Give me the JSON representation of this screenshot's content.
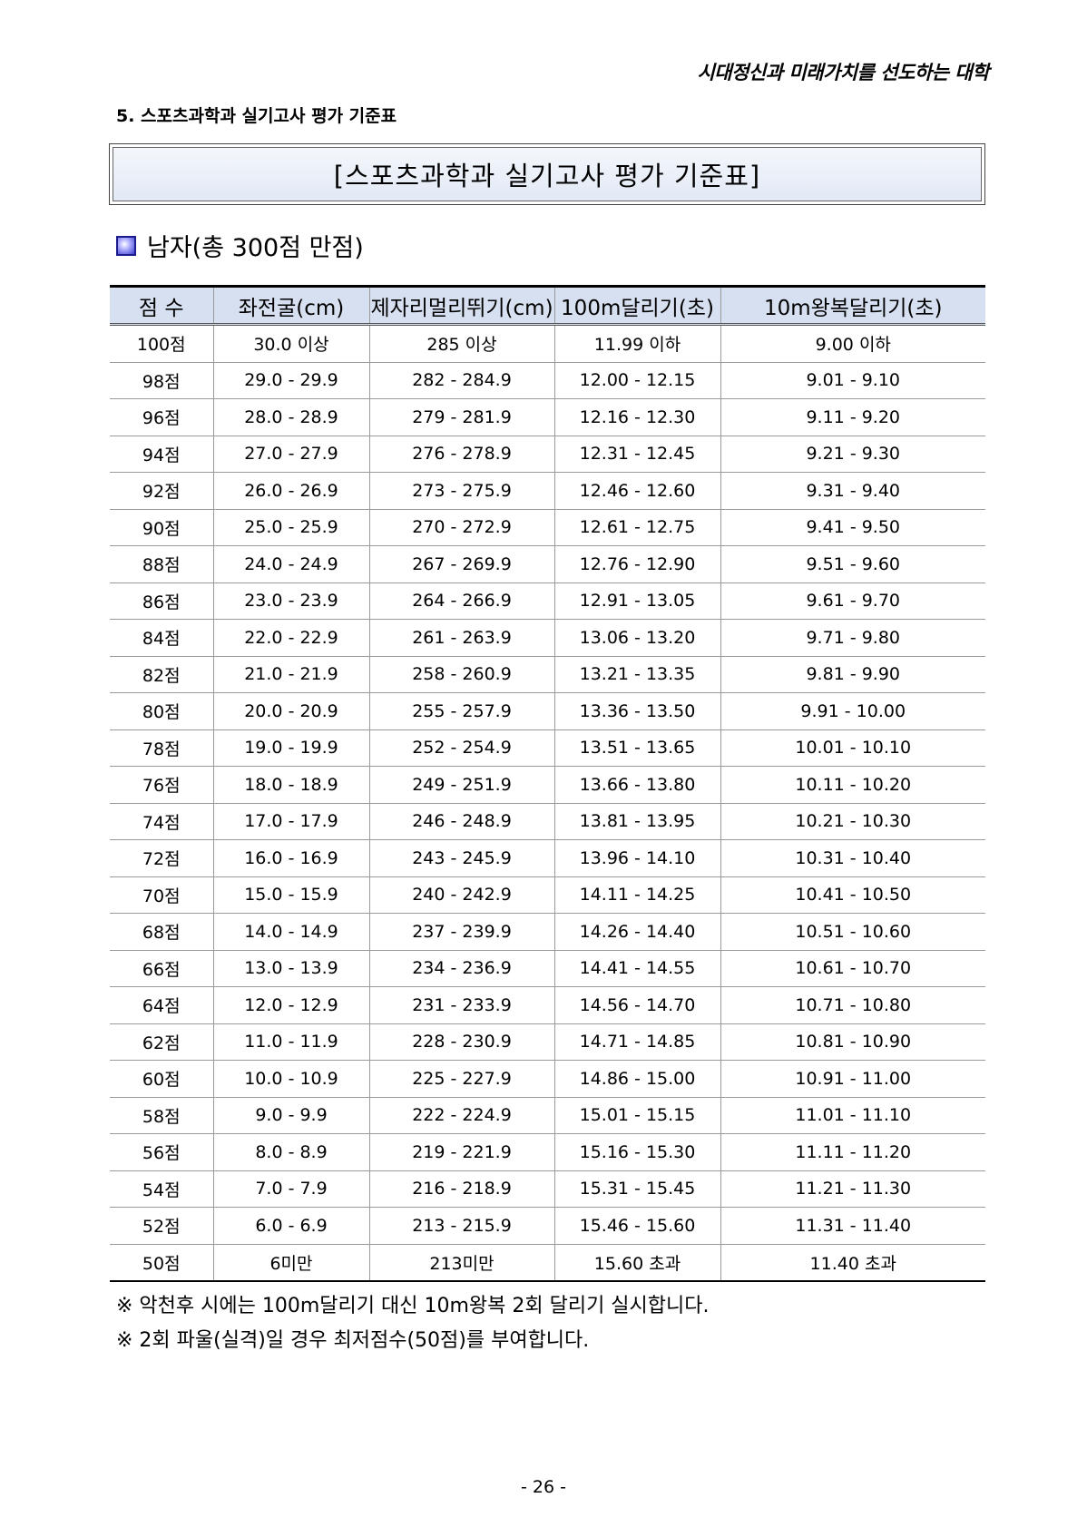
{
  "header": {
    "slogan": "시대정신과 미래가치를 선도하는 대학"
  },
  "section": {
    "heading": "5. 스포츠과학과 실기고사 평가 기준표"
  },
  "title_box": {
    "text": "[스포츠과학과 실기고사 평가 기준표]"
  },
  "group": {
    "icon": "square-bullet-icon",
    "heading": "남자(총 300점 만점)"
  },
  "table": {
    "columns": [
      "점 수",
      "좌전굴(cm)",
      "제자리멀리뛰기(cm)",
      "100m달리기(초)",
      "10m왕복달리기(초)"
    ],
    "rows": [
      [
        "100점",
        "30.0 이상",
        "285 이상",
        "11.99 이하",
        "9.00 이하"
      ],
      [
        "98점",
        "29.0 - 29.9",
        "282 - 284.9",
        "12.00 - 12.15",
        "9.01 - 9.10"
      ],
      [
        "96점",
        "28.0 - 28.9",
        "279 - 281.9",
        "12.16 - 12.30",
        "9.11 - 9.20"
      ],
      [
        "94점",
        "27.0 - 27.9",
        "276 - 278.9",
        "12.31 - 12.45",
        "9.21 - 9.30"
      ],
      [
        "92점",
        "26.0 - 26.9",
        "273 - 275.9",
        "12.46 - 12.60",
        "9.31 - 9.40"
      ],
      [
        "90점",
        "25.0 - 25.9",
        "270 - 272.9",
        "12.61 - 12.75",
        "9.41 - 9.50"
      ],
      [
        "88점",
        "24.0 - 24.9",
        "267 - 269.9",
        "12.76 - 12.90",
        "9.51 - 9.60"
      ],
      [
        "86점",
        "23.0 - 23.9",
        "264 - 266.9",
        "12.91 - 13.05",
        "9.61 - 9.70"
      ],
      [
        "84점",
        "22.0 - 22.9",
        "261 - 263.9",
        "13.06 - 13.20",
        "9.71 - 9.80"
      ],
      [
        "82점",
        "21.0 - 21.9",
        "258 - 260.9",
        "13.21 - 13.35",
        "9.81 - 9.90"
      ],
      [
        "80점",
        "20.0 - 20.9",
        "255 - 257.9",
        "13.36 - 13.50",
        "9.91 - 10.00"
      ],
      [
        "78점",
        "19.0 - 19.9",
        "252 - 254.9",
        "13.51 - 13.65",
        "10.01 - 10.10"
      ],
      [
        "76점",
        "18.0 - 18.9",
        "249 - 251.9",
        "13.66 - 13.80",
        "10.11 - 10.20"
      ],
      [
        "74점",
        "17.0 - 17.9",
        "246 - 248.9",
        "13.81 - 13.95",
        "10.21 - 10.30"
      ],
      [
        "72점",
        "16.0 - 16.9",
        "243 - 245.9",
        "13.96 - 14.10",
        "10.31 - 10.40"
      ],
      [
        "70점",
        "15.0 - 15.9",
        "240 - 242.9",
        "14.11 - 14.25",
        "10.41 - 10.50"
      ],
      [
        "68점",
        "14.0 - 14.9",
        "237 - 239.9",
        "14.26 - 14.40",
        "10.51 - 10.60"
      ],
      [
        "66점",
        "13.0 - 13.9",
        "234 - 236.9",
        "14.41 - 14.55",
        "10.61 - 10.70"
      ],
      [
        "64점",
        "12.0 - 12.9",
        "231 - 233.9",
        "14.56 - 14.70",
        "10.71 - 10.80"
      ],
      [
        "62점",
        "11.0 - 11.9",
        "228 - 230.9",
        "14.71 - 14.85",
        "10.81 - 10.90"
      ],
      [
        "60점",
        "10.0 - 10.9",
        "225 - 227.9",
        "14.86 - 15.00",
        "10.91 - 11.00"
      ],
      [
        "58점",
        "9.0 - 9.9",
        "222 - 224.9",
        "15.01 - 15.15",
        "11.01 - 11.10"
      ],
      [
        "56점",
        "8.0 - 8.9",
        "219 - 221.9",
        "15.16 - 15.30",
        "11.11 - 11.20"
      ],
      [
        "54점",
        "7.0 - 7.9",
        "216 - 218.9",
        "15.31 - 15.45",
        "11.21 - 11.30"
      ],
      [
        "52점",
        "6.0 - 6.9",
        "213 - 215.9",
        "15.46 - 15.60",
        "11.31 - 11.40"
      ],
      [
        "50점",
        "6미만",
        "213미만",
        "15.60 초과",
        "11.40 초과"
      ]
    ]
  },
  "notes": [
    "※ 악천후 시에는 100m달리기 대신 10m왕복 2회 달리기 실시합니다.",
    "※ 2회 파울(실격)일 경우 최저점수(50점)를 부여합니다."
  ],
  "footer": {
    "page_number": "- 26 -"
  }
}
